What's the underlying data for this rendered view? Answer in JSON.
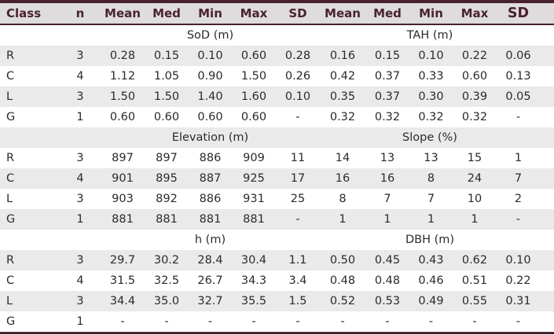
{
  "table": {
    "colors": {
      "accent": "#47222d",
      "header_bg": "#dedcdd",
      "header_text": "#4a232e",
      "stripe_bg": "#ebeaea",
      "text": "#2b2b2b"
    },
    "columns": [
      {
        "label": "Class",
        "align": "left"
      },
      {
        "label": "n"
      },
      {
        "label": "Mean"
      },
      {
        "label": "Med"
      },
      {
        "label": "Min"
      },
      {
        "label": "Max"
      },
      {
        "label": "SD"
      },
      {
        "label": "Mean"
      },
      {
        "label": "Med"
      },
      {
        "label": "Min"
      },
      {
        "label": "Max"
      },
      {
        "label": "SD",
        "emphasis": true
      }
    ],
    "sections": [
      {
        "left_title": "SoD (m)",
        "right_title": "TAH (m)",
        "rows": [
          {
            "class": "R",
            "n": "3",
            "values": [
              "0.28",
              "0.15",
              "0.10",
              "0.60",
              "0.28",
              "0.16",
              "0.15",
              "0.10",
              "0.22",
              "0.06"
            ]
          },
          {
            "class": "C",
            "n": "4",
            "values": [
              "1.12",
              "1.05",
              "0.90",
              "1.50",
              "0.26",
              "0.42",
              "0.37",
              "0.33",
              "0.60",
              "0.13"
            ]
          },
          {
            "class": "L",
            "n": "3",
            "values": [
              "1.50",
              "1.50",
              "1.40",
              "1.60",
              "0.10",
              "0.35",
              "0.37",
              "0.30",
              "0.39",
              "0.05"
            ]
          },
          {
            "class": "G",
            "n": "1",
            "values": [
              "0.60",
              "0.60",
              "0.60",
              "0.60",
              "-",
              "0.32",
              "0.32",
              "0.32",
              "0.32",
              "-"
            ]
          }
        ]
      },
      {
        "left_title": "Elevation (m)",
        "right_title": "Slope (%)",
        "rows": [
          {
            "class": "R",
            "n": "3",
            "values": [
              "897",
              "897",
              "886",
              "909",
              "11",
              "14",
              "13",
              "13",
              "15",
              "1"
            ]
          },
          {
            "class": "C",
            "n": "4",
            "values": [
              "901",
              "895",
              "887",
              "925",
              "17",
              "16",
              "16",
              "8",
              "24",
              "7"
            ]
          },
          {
            "class": "L",
            "n": "3",
            "values": [
              "903",
              "892",
              "886",
              "931",
              "25",
              "8",
              "7",
              "7",
              "10",
              "2"
            ]
          },
          {
            "class": "G",
            "n": "1",
            "values": [
              "881",
              "881",
              "881",
              "881",
              "-",
              "1",
              "1",
              "1",
              "1",
              "-"
            ]
          }
        ]
      },
      {
        "left_title": "h (m)",
        "right_title": "DBH (m)",
        "rows": [
          {
            "class": "R",
            "n": "3",
            "values": [
              "29.7",
              "30.2",
              "28.4",
              "30.4",
              "1.1",
              "0.50",
              "0.45",
              "0.43",
              "0.62",
              "0.10"
            ]
          },
          {
            "class": "C",
            "n": "4",
            "values": [
              "31.5",
              "32.5",
              "26.7",
              "34.3",
              "3.4",
              "0.48",
              "0.48",
              "0.46",
              "0.51",
              "0.22"
            ]
          },
          {
            "class": "L",
            "n": "3",
            "values": [
              "34.4",
              "35.0",
              "32.7",
              "35.5",
              "1.5",
              "0.52",
              "0.53",
              "0.49",
              "0.55",
              "0.31"
            ]
          },
          {
            "class": "G",
            "n": "1",
            "values": [
              "-",
              "-",
              "-",
              "-",
              "-",
              "-",
              "-",
              "-",
              "-",
              "-"
            ]
          }
        ]
      }
    ]
  }
}
